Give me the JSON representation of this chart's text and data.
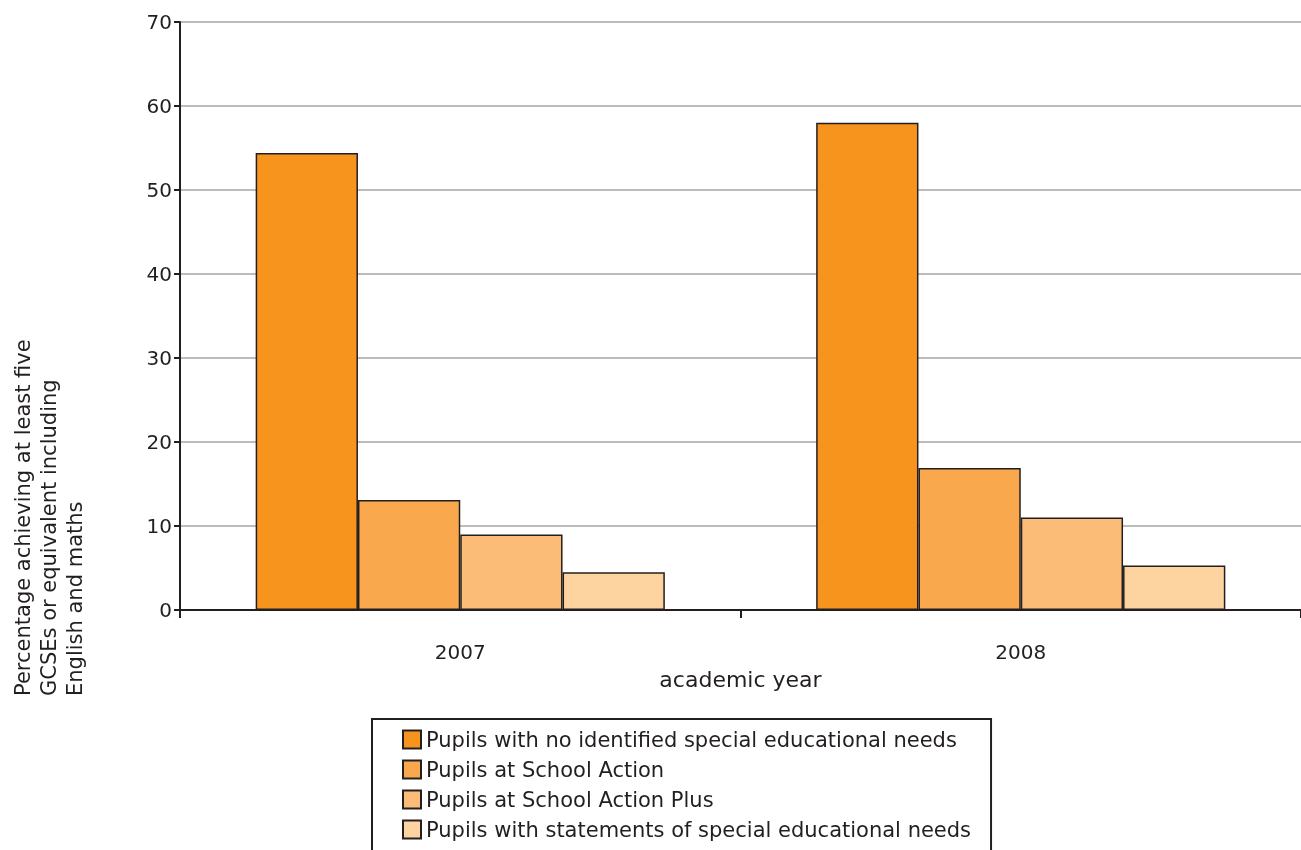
{
  "chart_data": {
    "type": "bar",
    "xlabel": "academic year",
    "ylabel": "Percentage achieving at least five GCSEs or equivalent including English and maths",
    "categories": [
      "2007",
      "2008"
    ],
    "series": [
      {
        "name": "Pupils with no identified special educational needs",
        "color": "#f7941e",
        "values": [
          54.4,
          58.0
        ]
      },
      {
        "name": "Pupils at School Action",
        "color": "#f9a84e",
        "values": [
          13.1,
          16.9
        ]
      },
      {
        "name": "Pupils at School Action Plus",
        "color": "#fbbc78",
        "values": [
          9.0,
          11.0
        ]
      },
      {
        "name": "Pupils with statements of special educational needs",
        "color": "#fdd39f",
        "values": [
          4.5,
          5.3
        ]
      }
    ],
    "ylim": [
      0,
      70
    ],
    "yticks": [
      0,
      10,
      20,
      30,
      40,
      50,
      60,
      70
    ],
    "grid": "y",
    "legend": "bottom"
  }
}
